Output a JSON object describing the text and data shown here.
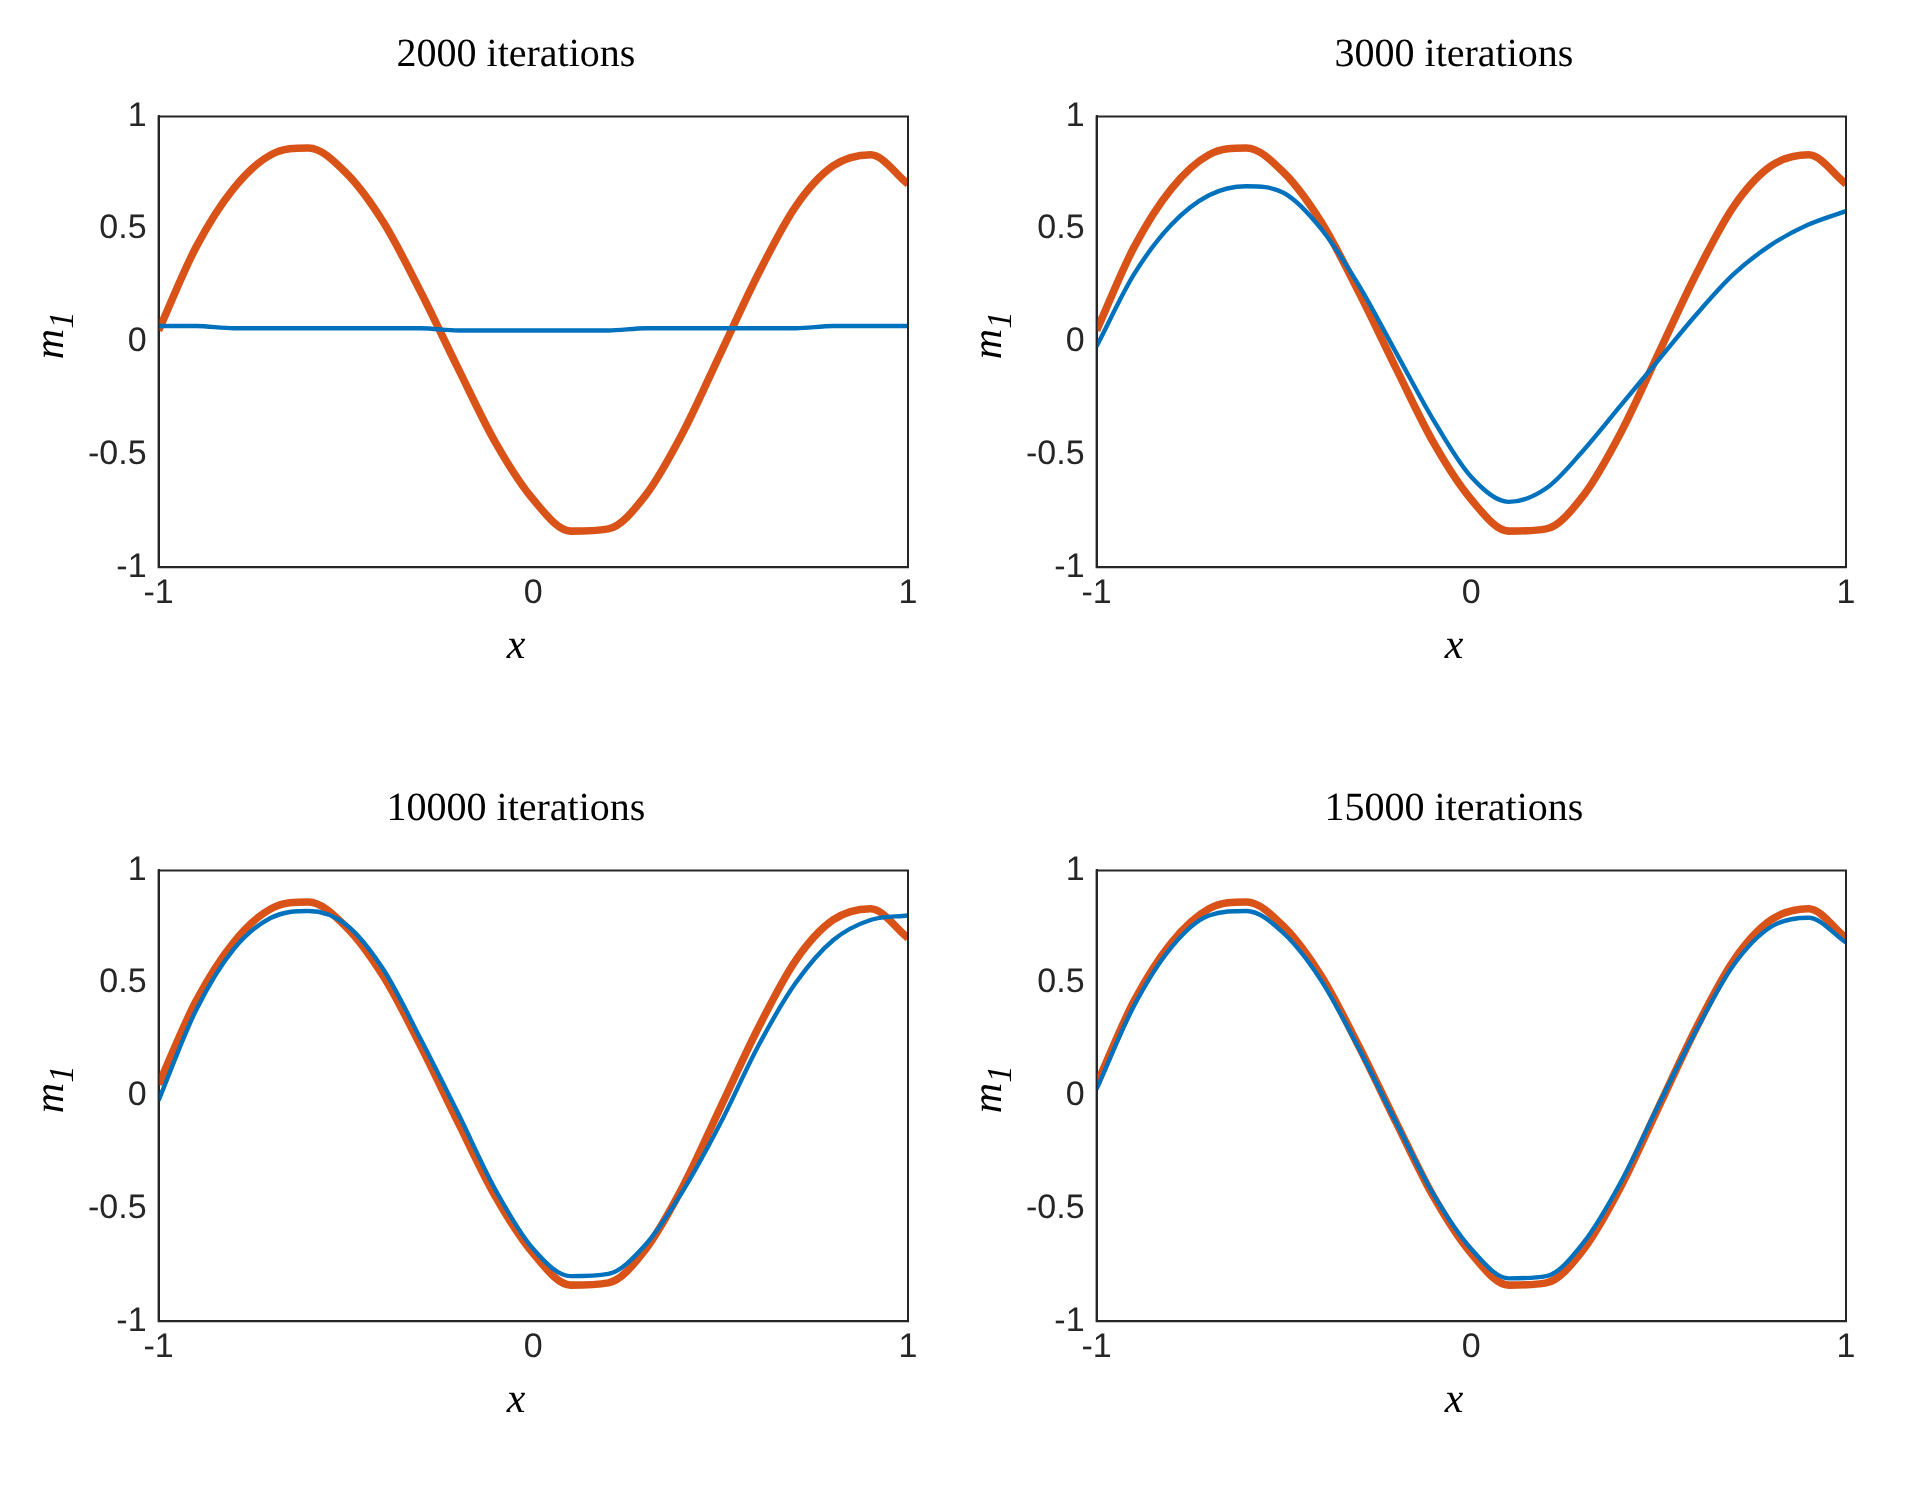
{
  "chart_data": [
    {
      "type": "line",
      "title": "2000 iterations",
      "xlabel": "x",
      "ylabel": "m$_{1}$",
      "x": [
        -1,
        -0.9,
        -0.8,
        -0.7,
        -0.6,
        -0.5,
        -0.4,
        -0.3,
        -0.2,
        -0.1,
        0,
        0.1,
        0.2,
        0.3,
        0.4,
        0.5,
        0.6,
        0.7,
        0.8,
        0.9,
        1
      ],
      "xlim": [
        -1,
        1
      ],
      "ylim": [
        -1,
        1
      ],
      "xticks": [
        -1,
        0,
        1
      ],
      "yticks": [
        -1,
        -0.5,
        0,
        0.5,
        1
      ],
      "marker": "none",
      "line_style": "solid",
      "grid": false,
      "legend": false,
      "series": [
        {
          "color": "#0072bd",
          "values": [
            0.07,
            0.07,
            0.06,
            0.06,
            0.06,
            0.06,
            0.06,
            0.06,
            0.05,
            0.05,
            0.05,
            0.05,
            0.05,
            0.06,
            0.06,
            0.06,
            0.06,
            0.06,
            0.07,
            0.07,
            0.07
          ]
        },
        {
          "color": "#d95319",
          "values": [
            0.05,
            0.42,
            0.68,
            0.83,
            0.86,
            0.75,
            0.53,
            0.22,
            -0.12,
            -0.45,
            -0.7,
            -0.84,
            -0.83,
            -0.68,
            -0.4,
            -0.05,
            0.3,
            0.6,
            0.78,
            0.83,
            0.7
          ]
        }
      ]
    },
    {
      "type": "line",
      "title": "3000 iterations",
      "xlabel": "x",
      "ylabel": "m$_{1}$",
      "x": [
        -1,
        -0.9,
        -0.8,
        -0.7,
        -0.6,
        -0.5,
        -0.4,
        -0.3,
        -0.2,
        -0.1,
        0,
        0.1,
        0.2,
        0.3,
        0.4,
        0.5,
        0.6,
        0.7,
        0.8,
        0.9,
        1
      ],
      "xlim": [
        -1,
        1
      ],
      "ylim": [
        -1,
        1
      ],
      "xticks": [
        -1,
        0,
        1
      ],
      "yticks": [
        -1,
        -0.5,
        0,
        0.5,
        1
      ],
      "marker": "none",
      "line_style": "solid",
      "grid": false,
      "legend": false,
      "series": [
        {
          "color": "#0072bd",
          "values": [
            -0.02,
            0.3,
            0.52,
            0.65,
            0.69,
            0.66,
            0.5,
            0.25,
            -0.05,
            -0.35,
            -0.6,
            -0.71,
            -0.65,
            -0.48,
            -0.28,
            -0.08,
            0.12,
            0.3,
            0.43,
            0.52,
            0.58
          ]
        },
        {
          "color": "#d95319",
          "values": [
            0.05,
            0.42,
            0.68,
            0.83,
            0.86,
            0.75,
            0.53,
            0.22,
            -0.12,
            -0.45,
            -0.7,
            -0.84,
            -0.83,
            -0.68,
            -0.4,
            -0.05,
            0.3,
            0.6,
            0.78,
            0.83,
            0.7
          ]
        }
      ]
    },
    {
      "type": "line",
      "title": "10000 iterations",
      "xlabel": "x",
      "ylabel": "m$_{1}$",
      "x": [
        -1,
        -0.9,
        -0.8,
        -0.7,
        -0.6,
        -0.5,
        -0.4,
        -0.3,
        -0.2,
        -0.1,
        0,
        0.1,
        0.2,
        0.3,
        0.4,
        0.5,
        0.6,
        0.7,
        0.8,
        0.9,
        1
      ],
      "xlim": [
        -1,
        1
      ],
      "ylim": [
        -1,
        1
      ],
      "xticks": [
        -1,
        0,
        1
      ],
      "yticks": [
        -1,
        -0.5,
        0,
        0.5,
        1
      ],
      "marker": "none",
      "line_style": "solid",
      "grid": false,
      "legend": false,
      "series": [
        {
          "color": "#0072bd",
          "values": [
            -0.02,
            0.38,
            0.65,
            0.79,
            0.82,
            0.76,
            0.56,
            0.25,
            -0.08,
            -0.42,
            -0.68,
            -0.8,
            -0.79,
            -0.66,
            -0.42,
            -0.12,
            0.22,
            0.5,
            0.69,
            0.78,
            0.8
          ]
        },
        {
          "color": "#d95319",
          "values": [
            0.05,
            0.42,
            0.68,
            0.83,
            0.86,
            0.75,
            0.53,
            0.22,
            -0.12,
            -0.45,
            -0.7,
            -0.84,
            -0.83,
            -0.68,
            -0.4,
            -0.05,
            0.3,
            0.6,
            0.78,
            0.83,
            0.7
          ]
        }
      ]
    },
    {
      "type": "line",
      "title": "15000 iterations",
      "xlabel": "x",
      "ylabel": "m$_{1}$",
      "x": [
        -1,
        -0.9,
        -0.8,
        -0.7,
        -0.6,
        -0.5,
        -0.4,
        -0.3,
        -0.2,
        -0.1,
        0,
        0.1,
        0.2,
        0.3,
        0.4,
        0.5,
        0.6,
        0.7,
        0.8,
        0.9,
        1
      ],
      "xlim": [
        -1,
        1
      ],
      "ylim": [
        -1,
        1
      ],
      "xticks": [
        -1,
        0,
        1
      ],
      "yticks": [
        -1,
        -0.5,
        0,
        0.5,
        1
      ],
      "marker": "none",
      "line_style": "solid",
      "grid": false,
      "legend": false,
      "series": [
        {
          "color": "#0072bd",
          "values": [
            0.03,
            0.4,
            0.66,
            0.8,
            0.82,
            0.72,
            0.51,
            0.21,
            -0.12,
            -0.44,
            -0.68,
            -0.81,
            -0.8,
            -0.65,
            -0.38,
            -0.04,
            0.29,
            0.58,
            0.75,
            0.79,
            0.68
          ]
        },
        {
          "color": "#d95319",
          "values": [
            0.05,
            0.42,
            0.68,
            0.83,
            0.86,
            0.75,
            0.53,
            0.22,
            -0.12,
            -0.45,
            -0.7,
            -0.84,
            -0.83,
            -0.68,
            -0.4,
            -0.05,
            0.3,
            0.6,
            0.78,
            0.83,
            0.7
          ]
        }
      ]
    }
  ]
}
